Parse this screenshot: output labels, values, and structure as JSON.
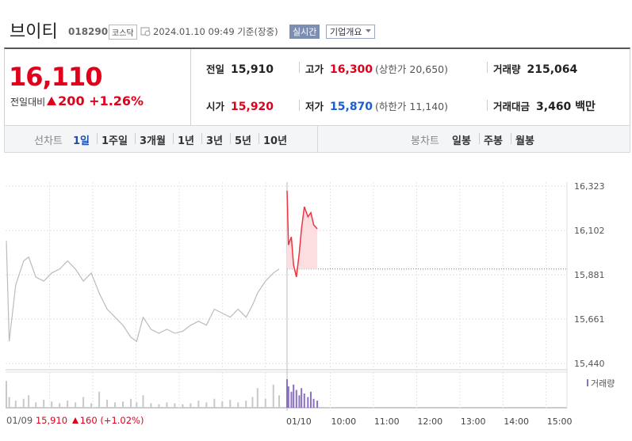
{
  "header": {
    "name": "브이티",
    "code": "018290",
    "market": "코스닥",
    "datetime": "2024.01.10 09:49 기준(장중)",
    "realtime": "실시간",
    "company": "기업개요"
  },
  "summary": {
    "price": "16,110",
    "change_label": "전일대비",
    "change": "200",
    "change_pct": "+1.26%",
    "color": "#e0001b",
    "stats": [
      {
        "label": "전일",
        "value": "15,910",
        "color": "#222222"
      },
      {
        "label": "고가",
        "value": "16,300",
        "note": "(상한가 20,650)",
        "color": "#e0001b"
      },
      {
        "label": "거래량",
        "value": "215,064",
        "color": "#222222"
      },
      {
        "label": "시가",
        "value": "15,920",
        "color": "#e0001b"
      },
      {
        "label": "저가",
        "value": "15,870",
        "note": "(하한가 11,140)",
        "color": "#1a5fd1"
      },
      {
        "label": "거래대금",
        "value": "3,460 백만",
        "color": "#222222"
      }
    ]
  },
  "tabs": {
    "line_label": "선차트",
    "line": [
      "1일",
      "1주일",
      "3개월",
      "1년",
      "3년",
      "5년",
      "10년"
    ],
    "candle_label": "봉차트",
    "candle": [
      "일봉",
      "주봉",
      "월봉"
    ]
  },
  "chart": {
    "type": "line",
    "ylim": [
      15440,
      16323
    ],
    "yticks": [
      {
        "value": 15440,
        "label": "15,440"
      },
      {
        "value": 15661,
        "label": "15,661"
      },
      {
        "value": 15881,
        "label": "15,881"
      },
      {
        "value": 16102,
        "label": "16,102"
      },
      {
        "value": 16323,
        "label": "16,323"
      }
    ],
    "xticks": [
      {
        "value": 0,
        "label": "01/10"
      },
      {
        "value": 60,
        "label": "10:00"
      },
      {
        "value": 120,
        "label": "11:00"
      },
      {
        "value": 180,
        "label": "12:00"
      },
      {
        "value": 240,
        "label": "13:00"
      },
      {
        "value": 300,
        "label": "14:00"
      },
      {
        "value": 360,
        "label": "15:00"
      }
    ],
    "reference_line": 15910,
    "volume_label": "거래량",
    "previous_day": {
      "label": "01/09",
      "close": "15,910",
      "change": "160",
      "change_pct": "(+1.02%)"
    },
    "series": [
      {
        "color": "#bbbbbb",
        "volume_color": "#c8c8c8",
        "x": [
          0,
          4,
          13,
          24,
          31,
          41,
          52,
          63,
          74,
          85,
          96,
          107,
          118,
          129,
          140,
          151,
          162,
          173,
          181,
          190,
          201,
          212,
          223,
          234,
          245,
          256,
          267,
          278,
          289,
          300,
          311,
          322,
          333,
          342,
          349,
          360,
          371,
          379
        ],
        "values": [
          16050,
          15550,
          15830,
          15950,
          15970,
          15870,
          15850,
          15890,
          15910,
          15950,
          15910,
          15850,
          15890,
          15790,
          15710,
          15670,
          15630,
          15570,
          15550,
          15670,
          15610,
          15590,
          15610,
          15590,
          15600,
          15630,
          15650,
          15630,
          15710,
          15690,
          15670,
          15710,
          15670,
          15730,
          15790,
          15850,
          15890,
          15910
        ],
        "volume": [
          30,
          12,
          8,
          10,
          14,
          6,
          9,
          7,
          5,
          8,
          6,
          12,
          5,
          18,
          9,
          6,
          7,
          10,
          6,
          14,
          5,
          4,
          6,
          5,
          4,
          5,
          8,
          6,
          10,
          7,
          9,
          6,
          8,
          12,
          22,
          10,
          26,
          14
        ]
      },
      {
        "color": "#f0343f",
        "volume_color": "#8a6fc4",
        "fill": "#fcdde0",
        "x": [
          0,
          2,
          6,
          9,
          13,
          17,
          20,
          24,
          29,
          33,
          37,
          42
        ],
        "values": [
          16300,
          16030,
          16070,
          15930,
          15870,
          15990,
          16110,
          16220,
          16170,
          16190,
          16130,
          16110
        ],
        "volume": [
          32,
          24,
          18,
          26,
          20,
          14,
          22,
          16,
          12,
          18,
          10,
          8
        ]
      }
    ]
  }
}
